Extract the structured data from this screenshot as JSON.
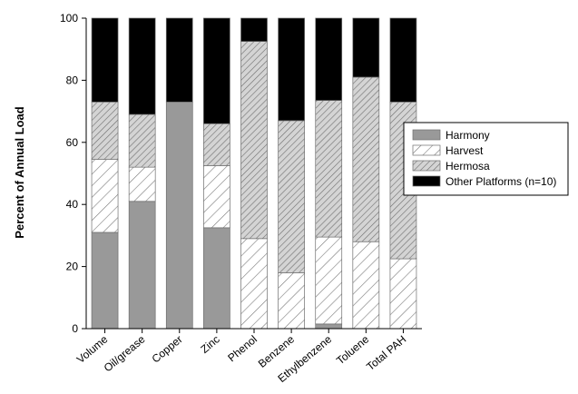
{
  "chart_data": {
    "type": "bar",
    "stacked": true,
    "categories": [
      "Volume",
      "Oil/grease",
      "Copper",
      "Zinc",
      "Phenol",
      "Benzene",
      "Ethylbenzene",
      "Toluene",
      "Total PAH"
    ],
    "series": [
      {
        "name": "Harmony",
        "pattern": "solid-gray",
        "color": "#999999",
        "values": [
          31,
          41,
          73,
          32.5,
          0,
          0,
          1.5,
          0,
          0
        ]
      },
      {
        "name": "Harvest",
        "pattern": "diagonal-light",
        "color": "#ffffff",
        "values": [
          23.5,
          11,
          0,
          20,
          29,
          18,
          28,
          28,
          22.5
        ]
      },
      {
        "name": "Hermosa",
        "pattern": "diagonal-dense-gray",
        "color": "#cccccc",
        "values": [
          18.5,
          17,
          0,
          13.5,
          63.5,
          49,
          44,
          53,
          50.5
        ]
      },
      {
        "name": "Other Platforms (n=10)",
        "pattern": "solid-black",
        "color": "#000000",
        "values": [
          27,
          31,
          27,
          34,
          7.5,
          33,
          26.5,
          19,
          27
        ]
      }
    ],
    "xlabel": "",
    "ylabel": "Percent of Annual Load",
    "ylim": [
      0,
      100
    ],
    "yticks": [
      0,
      20,
      40,
      60,
      80,
      100
    ],
    "grid": false,
    "legend_position": "right"
  }
}
